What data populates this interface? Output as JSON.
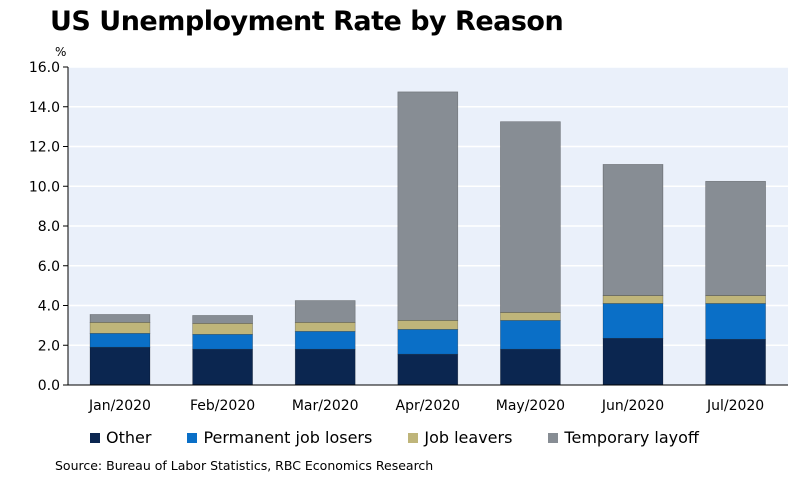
{
  "chart_data": {
    "type": "bar",
    "stacked": true,
    "title": "US Unemployment Rate by Reason",
    "ylabel": "%",
    "xlabel": "",
    "ylim": [
      0,
      16
    ],
    "yticks": [
      "0.0",
      "2.0",
      "4.0",
      "6.0",
      "8.0",
      "10.0",
      "12.0",
      "14.0",
      "16.0"
    ],
    "ytick_values": [
      0,
      2,
      4,
      6,
      8,
      10,
      12,
      14,
      16
    ],
    "grid": true,
    "legend_position": "bottom",
    "categories": [
      "Jan/2020",
      "Feb/2020",
      "Mar/2020",
      "Apr/2020",
      "May/2020",
      "Jun/2020",
      "Jul/2020"
    ],
    "series": [
      {
        "name": "Other",
        "color": "#0b2650",
        "values": [
          1.9,
          1.8,
          1.8,
          1.55,
          1.8,
          2.35,
          2.3
        ]
      },
      {
        "name": "Permanent job losers",
        "color": "#0a6fc7",
        "values": [
          0.7,
          0.75,
          0.9,
          1.25,
          1.45,
          1.75,
          1.8
        ]
      },
      {
        "name": "Job leavers",
        "color": "#bfb57a",
        "values": [
          0.55,
          0.55,
          0.45,
          0.45,
          0.4,
          0.4,
          0.4
        ]
      },
      {
        "name": "Temporary layoff",
        "color": "#878d94",
        "values": [
          0.4,
          0.4,
          1.1,
          11.5,
          9.6,
          6.6,
          5.75
        ]
      }
    ],
    "source": "Source: Bureau of Labor Statistics, RBC Economics Research"
  },
  "colors": {
    "plot_background": "#eaf0fa",
    "grid": "#ffffff",
    "axis": "#000000"
  }
}
